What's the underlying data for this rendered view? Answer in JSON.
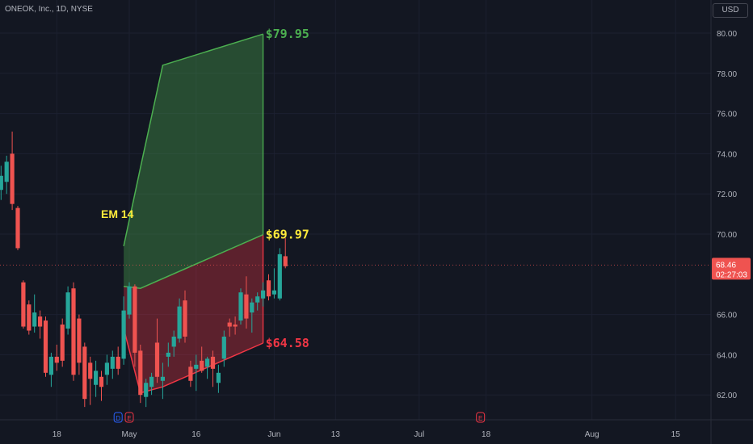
{
  "header": {
    "symbol_title": "ONEOK, Inc., 1D, NYSE",
    "currency": "USD"
  },
  "colors": {
    "background": "#131722",
    "bull": "#26a69a",
    "bear": "#ef5350",
    "green_zone": "#4caf50",
    "red_zone": "#f23645",
    "em_label": "#ffeb3b"
  },
  "chart_data": {
    "type": "candlestick",
    "title": "",
    "xlabel": "",
    "ylabel": "",
    "ylim": [
      60.8,
      81.2
    ],
    "y_ticks": [
      "80.00",
      "78.00",
      "76.00",
      "74.00",
      "72.00",
      "70.00",
      "66.00",
      "64.00",
      "62.00"
    ],
    "x_ticks": [
      "18",
      "May",
      "16",
      "Jun",
      "13",
      "Jul",
      "18",
      "Aug",
      "15"
    ],
    "last_price": "68.46",
    "countdown": "02:27:03",
    "annotation_label": "EM 14",
    "levels": [
      {
        "label": "$79.95",
        "value": 79.95,
        "color": "#4caf50"
      },
      {
        "label": "$69.97",
        "value": 69.97,
        "color": "#ffeb3b"
      },
      {
        "label": "$64.58",
        "value": 64.58,
        "color": "#f23645"
      }
    ],
    "upper_band": [
      [
        -1,
        69.4
      ],
      [
        2,
        73.3
      ],
      [
        6,
        78.4
      ],
      [
        24,
        79.95
      ]
    ],
    "mid_band": [
      [
        -1,
        67.4
      ],
      [
        2,
        67.3
      ],
      [
        24,
        69.97
      ]
    ],
    "lower_band": [
      [
        -1,
        65.3
      ],
      [
        2,
        62.1
      ],
      [
        6,
        62.4
      ],
      [
        24,
        64.58
      ]
    ],
    "candles": [
      {
        "d": -33,
        "o": 71.0,
        "h": 72.0,
        "l": 69.8,
        "c": 70.5
      },
      {
        "d": -32,
        "o": 70.2,
        "h": 71.8,
        "l": 69.5,
        "c": 71.1
      },
      {
        "d": -31,
        "o": 70.4,
        "h": 71.5,
        "l": 69.9,
        "c": 71.0
      },
      {
        "d": -30,
        "o": 70.6,
        "h": 72.0,
        "l": 70.3,
        "c": 71.6
      },
      {
        "d": -29,
        "o": 71.0,
        "h": 71.4,
        "l": 70.0,
        "c": 70.5
      },
      {
        "d": -28,
        "o": 70.3,
        "h": 71.2,
        "l": 69.9,
        "c": 70.9
      },
      {
        "d": -27,
        "o": 71.0,
        "h": 71.9,
        "l": 70.7,
        "c": 71.2
      },
      {
        "d": -26,
        "o": 70.8,
        "h": 71.7,
        "l": 70.4,
        "c": 71.3
      },
      {
        "d": -25,
        "o": 71.3,
        "h": 71.9,
        "l": 71.0,
        "c": 71.5
      },
      {
        "d": -24,
        "o": 71.8,
        "h": 72.5,
        "l": 71.5,
        "c": 72.4
      },
      {
        "d": -23,
        "o": 72.2,
        "h": 73.4,
        "l": 71.7,
        "c": 72.9
      },
      {
        "d": -22,
        "o": 72.6,
        "h": 73.9,
        "l": 72.0,
        "c": 73.6
      },
      {
        "d": -21,
        "o": 74.0,
        "h": 75.1,
        "l": 71.2,
        "c": 71.5
      },
      {
        "d": -20,
        "o": 71.3,
        "h": 71.4,
        "l": 69.2,
        "c": 69.3
      },
      {
        "d": -19,
        "o": 67.6,
        "h": 67.7,
        "l": 65.3,
        "c": 65.4
      },
      {
        "d": -18,
        "o": 66.5,
        "h": 66.7,
        "l": 65.0,
        "c": 65.2
      },
      {
        "d": -17,
        "o": 65.4,
        "h": 67.0,
        "l": 65.1,
        "c": 66.1
      },
      {
        "d": -16,
        "o": 65.9,
        "h": 66.2,
        "l": 64.8,
        "c": 65.4
      },
      {
        "d": -15,
        "o": 65.7,
        "h": 65.9,
        "l": 62.9,
        "c": 63.1
      },
      {
        "d": -14,
        "o": 63.0,
        "h": 64.1,
        "l": 62.4,
        "c": 63.9
      },
      {
        "d": -13,
        "o": 63.9,
        "h": 64.5,
        "l": 63.2,
        "c": 63.6
      },
      {
        "d": -12,
        "o": 65.5,
        "h": 65.8,
        "l": 63.4,
        "c": 63.7
      },
      {
        "d": -11,
        "o": 65.3,
        "h": 67.4,
        "l": 65.0,
        "c": 67.1
      },
      {
        "d": -10,
        "o": 67.3,
        "h": 67.6,
        "l": 62.7,
        "c": 63.0
      },
      {
        "d": -9,
        "o": 65.8,
        "h": 66.0,
        "l": 63.0,
        "c": 63.6
      },
      {
        "d": -8,
        "o": 64.4,
        "h": 64.6,
        "l": 61.4,
        "c": 61.8
      },
      {
        "d": -7,
        "o": 63.6,
        "h": 63.9,
        "l": 61.5,
        "c": 62.8
      },
      {
        "d": -6,
        "o": 62.5,
        "h": 63.7,
        "l": 61.9,
        "c": 63.2
      },
      {
        "d": -5,
        "o": 62.9,
        "h": 63.2,
        "l": 61.7,
        "c": 62.4
      },
      {
        "d": -4,
        "o": 63.0,
        "h": 64.0,
        "l": 62.5,
        "c": 63.6
      },
      {
        "d": -3,
        "o": 63.3,
        "h": 64.2,
        "l": 62.8,
        "c": 63.9
      },
      {
        "d": -2,
        "o": 63.9,
        "h": 64.4,
        "l": 63.0,
        "c": 63.3
      },
      {
        "d": -1,
        "o": 63.8,
        "h": 66.9,
        "l": 63.5,
        "c": 66.2
      },
      {
        "d": 0,
        "o": 66.0,
        "h": 67.6,
        "l": 65.8,
        "c": 67.4
      },
      {
        "d": 1,
        "o": 67.4,
        "h": 67.5,
        "l": 63.4,
        "c": 64.1
      },
      {
        "d": 2,
        "o": 64.2,
        "h": 64.5,
        "l": 61.6,
        "c": 62.0
      },
      {
        "d": 3,
        "o": 61.9,
        "h": 62.8,
        "l": 61.4,
        "c": 62.6
      },
      {
        "d": 4,
        "o": 62.4,
        "h": 63.1,
        "l": 62.0,
        "c": 62.9
      },
      {
        "d": 5,
        "o": 64.6,
        "h": 65.8,
        "l": 62.6,
        "c": 62.9
      },
      {
        "d": 6,
        "o": 62.7,
        "h": 63.6,
        "l": 61.8,
        "c": 62.9
      },
      {
        "d": 7,
        "o": 63.9,
        "h": 64.6,
        "l": 63.4,
        "c": 64.1
      },
      {
        "d": 8,
        "o": 64.4,
        "h": 65.2,
        "l": 63.9,
        "c": 64.9
      },
      {
        "d": 9,
        "o": 64.8,
        "h": 66.8,
        "l": 64.6,
        "c": 66.4
      },
      {
        "d": 10,
        "o": 66.7,
        "h": 67.2,
        "l": 64.6,
        "c": 64.9
      },
      {
        "d": 11,
        "o": 63.4,
        "h": 63.7,
        "l": 62.4,
        "c": 62.7
      },
      {
        "d": 12,
        "o": 63.3,
        "h": 64.0,
        "l": 62.2,
        "c": 63.5
      },
      {
        "d": 13,
        "o": 63.7,
        "h": 64.4,
        "l": 63.1,
        "c": 63.2
      },
      {
        "d": 14,
        "o": 63.4,
        "h": 63.9,
        "l": 62.8,
        "c": 63.8
      },
      {
        "d": 15,
        "o": 63.9,
        "h": 64.2,
        "l": 62.4,
        "c": 63.3
      },
      {
        "d": 16,
        "o": 62.6,
        "h": 63.5,
        "l": 62.1,
        "c": 63.1
      },
      {
        "d": 17,
        "o": 63.8,
        "h": 65.2,
        "l": 63.4,
        "c": 64.9
      },
      {
        "d": 18,
        "o": 65.6,
        "h": 65.8,
        "l": 64.9,
        "c": 65.4
      },
      {
        "d": 19,
        "o": 65.5,
        "h": 65.9,
        "l": 65.0,
        "c": 65.4
      },
      {
        "d": 20,
        "o": 65.7,
        "h": 67.3,
        "l": 65.5,
        "c": 67.1
      },
      {
        "d": 21,
        "o": 67.0,
        "h": 67.9,
        "l": 65.3,
        "c": 65.8
      },
      {
        "d": 22,
        "o": 66.1,
        "h": 66.8,
        "l": 65.1,
        "c": 66.6
      },
      {
        "d": 23,
        "o": 66.6,
        "h": 67.1,
        "l": 66.2,
        "c": 66.9
      },
      {
        "d": 24,
        "o": 66.8,
        "h": 67.6,
        "l": 66.4,
        "c": 67.2
      },
      {
        "d": 25,
        "o": 67.7,
        "h": 68.0,
        "l": 66.7,
        "c": 66.9
      },
      {
        "d": 26,
        "o": 67.0,
        "h": 68.3,
        "l": 66.8,
        "c": 67.2
      },
      {
        "d": 27,
        "o": 66.8,
        "h": 69.3,
        "l": 66.7,
        "c": 69.0
      },
      {
        "d": 28,
        "o": 68.9,
        "h": 69.8,
        "l": 68.3,
        "c": 68.4
      }
    ],
    "events": [
      {
        "label": "D",
        "day": -2,
        "color": "#2962ff"
      },
      {
        "label": "E",
        "day": 0,
        "color": "#f23645"
      },
      {
        "label": "E",
        "day": 63,
        "color": "#f23645"
      }
    ]
  }
}
